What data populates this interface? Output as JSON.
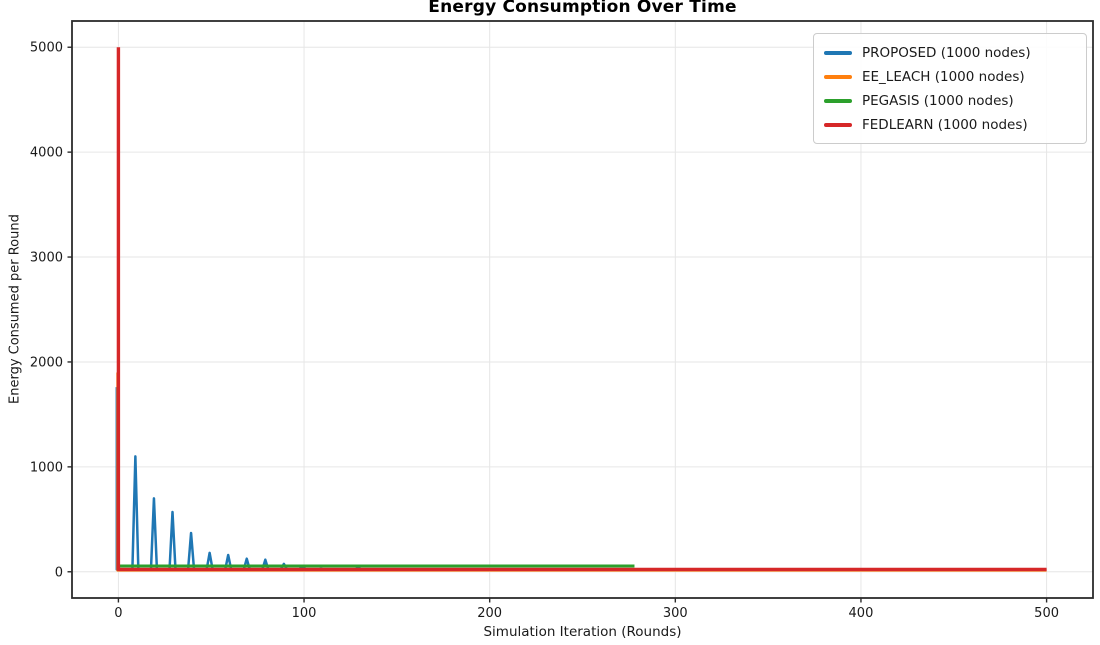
{
  "chart_data": {
    "type": "line",
    "title": "Energy Consumption Over Time",
    "xlabel": "Simulation Iteration (Rounds)",
    "ylabel": "Energy Consumed per Round",
    "xlim": [
      -25,
      525
    ],
    "ylim": [
      -250,
      5250
    ],
    "xticks": [
      0,
      100,
      200,
      300,
      400,
      500
    ],
    "yticks": [
      0,
      1000,
      2000,
      3000,
      4000,
      5000
    ],
    "grid": true,
    "grid_color": "#e6e6e6",
    "spine_color": "#2b2b2b",
    "background": "#ffffff",
    "legend_position": "upper right",
    "series": [
      {
        "name": "PROPOSED (1000 nodes)",
        "color": "#1f77b4",
        "lw": 2.5,
        "shape": "spikes",
        "baseline": 22,
        "spike_halfwidth": 1.6,
        "spikes": [
          [
            0,
            1760
          ],
          [
            10,
            1100
          ],
          [
            20,
            700
          ],
          [
            30,
            570
          ],
          [
            40,
            370
          ],
          [
            50,
            180
          ],
          [
            60,
            160
          ],
          [
            70,
            125
          ],
          [
            80,
            115
          ],
          [
            90,
            75
          ],
          [
            100,
            55
          ],
          [
            110,
            28
          ],
          [
            120,
            24
          ],
          [
            130,
            38
          ],
          [
            140,
            24
          ]
        ]
      },
      {
        "name": "EE_LEACH (1000 nodes)",
        "color": "#ff7f0e",
        "lw": 2.6,
        "shape": "spike_then_flat",
        "initial": 1900,
        "flat": 14,
        "start_x": 0,
        "end_x": 500
      },
      {
        "name": "PEGASIS (1000 nodes)",
        "color": "#2ca02c",
        "lw": 3,
        "shape": "flat",
        "flat": 55,
        "start_x": 0,
        "end_x": 278
      },
      {
        "name": "FEDLEARN (1000 nodes)",
        "color": "#d62728",
        "lw": 3.4,
        "shape": "spike_then_flat",
        "initial": 5000,
        "flat": 22,
        "start_x": 0,
        "end_x": 500
      }
    ]
  }
}
